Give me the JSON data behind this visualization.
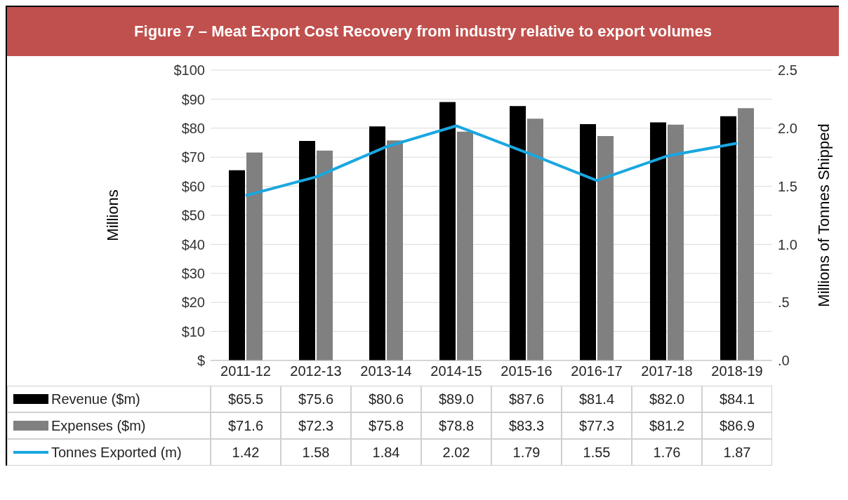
{
  "chart_data": {
    "type": "bar",
    "title": "Figure 7 – Meat Export Cost Recovery from industry relative to export volumes",
    "categories": [
      "2011-12",
      "2012-13",
      "2013-14",
      "2014-15",
      "2015-16",
      "2016-17",
      "2017-18",
      "2018-19"
    ],
    "series": [
      {
        "name": "Revenue ($m)",
        "color": "#000000",
        "values": [
          65.5,
          75.6,
          80.6,
          89.0,
          87.6,
          81.4,
          82.0,
          84.1
        ],
        "value_labels": [
          "$65.5",
          "$75.6",
          "$80.6",
          "$89.0",
          "$87.6",
          "$81.4",
          "$82.0",
          "$84.1"
        ]
      },
      {
        "name": "Expenses ($m)",
        "color": "#808080",
        "values": [
          71.6,
          72.3,
          75.8,
          78.8,
          83.3,
          77.3,
          81.2,
          86.9
        ],
        "value_labels": [
          "$71.6",
          "$72.3",
          "$75.8",
          "$78.8",
          "$83.3",
          "$77.3",
          "$81.2",
          "$86.9"
        ]
      },
      {
        "name": "Tonnes Exported (m)",
        "type": "line",
        "axis": "y2",
        "color": "#1aa7e0",
        "values": [
          1.42,
          1.58,
          1.84,
          2.02,
          1.79,
          1.55,
          1.76,
          1.87
        ],
        "value_labels": [
          "1.42",
          "1.58",
          "1.84",
          "2.02",
          "1.79",
          "1.55",
          "1.76",
          "1.87"
        ]
      }
    ],
    "ylabel": "Millions",
    "y2label": "Millions of Tonnes Shipped",
    "ylim": [
      0,
      100
    ],
    "yticks": [
      {
        "value": 0,
        "label": "$"
      },
      {
        "value": 10,
        "label": "$10"
      },
      {
        "value": 20,
        "label": "$20"
      },
      {
        "value": 30,
        "label": "$30"
      },
      {
        "value": 40,
        "label": "$40"
      },
      {
        "value": 50,
        "label": "$50"
      },
      {
        "value": 60,
        "label": "$60"
      },
      {
        "value": 70,
        "label": "$70"
      },
      {
        "value": 80,
        "label": "$80"
      },
      {
        "value": 90,
        "label": "$90"
      },
      {
        "value": 100,
        "label": "$100"
      }
    ],
    "y2lim": [
      0,
      2.5
    ],
    "y2ticks": [
      {
        "value": 0,
        "label": ".0"
      },
      {
        "value": 0.5,
        "label": ".5"
      },
      {
        "value": 1,
        "label": "1.0"
      },
      {
        "value": 1.5,
        "label": "1.5"
      },
      {
        "value": 2,
        "label": "2.0"
      },
      {
        "value": 2.5,
        "label": "2.5"
      }
    ],
    "grid": "y",
    "legend": "bottom left",
    "marker": "none",
    "line_style": "solid"
  }
}
